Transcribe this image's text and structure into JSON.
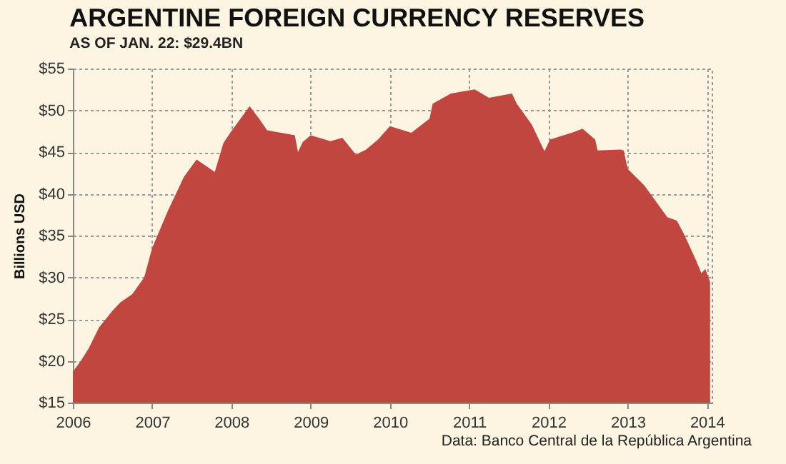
{
  "chart_data": {
    "type": "area",
    "title": "ARGENTINE FOREIGN CURRENCY RESERVES",
    "subtitle": "AS OF JAN. 22: $29.4BN",
    "ylabel": "Billions  USD",
    "annotations": [
      "Data: Banco Central de la República Argentina"
    ],
    "x": [
      2006.0,
      2006.1,
      2006.2,
      2006.33,
      2006.5,
      2006.6,
      2006.75,
      2006.9,
      2007.0,
      2007.2,
      2007.4,
      2007.56,
      2007.7,
      2007.79,
      2007.9,
      2008.0,
      2008.23,
      2008.35,
      2008.45,
      2008.8,
      2008.84,
      2008.9,
      2009.0,
      2009.25,
      2009.4,
      2009.57,
      2009.7,
      2009.85,
      2010.0,
      2010.27,
      2010.5,
      2010.54,
      2010.77,
      2011.07,
      2011.25,
      2011.54,
      2011.6,
      2011.79,
      2011.9,
      2011.95,
      2012.02,
      2012.32,
      2012.43,
      2012.59,
      2012.62,
      2012.91,
      2012.95,
      2013.0,
      2013.21,
      2013.5,
      2013.62,
      2013.71,
      2013.86,
      2013.93,
      2013.98,
      2014.04
    ],
    "series": [
      {
        "color": "#c0463f",
        "values": [
          18.7,
          20,
          21.5,
          24,
          26,
          27,
          28,
          30,
          33.5,
          38,
          42,
          44.1,
          43.2,
          42.6,
          46.1,
          47.5,
          50.5,
          49,
          47.6,
          47,
          45,
          46.2,
          47,
          46.3,
          46.7,
          44.7,
          45.3,
          46.5,
          48.1,
          47.3,
          49,
          50.8,
          52,
          52.5,
          51.5,
          52,
          50.8,
          48.3,
          46.1,
          45.1,
          46.5,
          47.4,
          47.8,
          46.5,
          45.2,
          45.3,
          45.2,
          43,
          41,
          37.2,
          36.8,
          35.2,
          32.1,
          30.5,
          31,
          29.4
        ]
      }
    ],
    "xlim": [
      2006,
      2014.06
    ],
    "xticks": [
      2006,
      2007,
      2008,
      2009,
      2010,
      2011,
      2012,
      2013,
      2014
    ],
    "ylim": [
      15,
      55
    ],
    "yticks": [
      {
        "value": 15,
        "label": "$15"
      },
      {
        "value": 20,
        "label": "$20"
      },
      {
        "value": 25,
        "label": "$25"
      },
      {
        "value": 30,
        "label": "$30"
      },
      {
        "value": 35,
        "label": "$35"
      },
      {
        "value": 40,
        "label": "$40"
      },
      {
        "value": 45,
        "label": "$45"
      },
      {
        "value": 50,
        "label": "$50"
      },
      {
        "value": 55,
        "label": "$55"
      }
    ],
    "grid": true
  }
}
